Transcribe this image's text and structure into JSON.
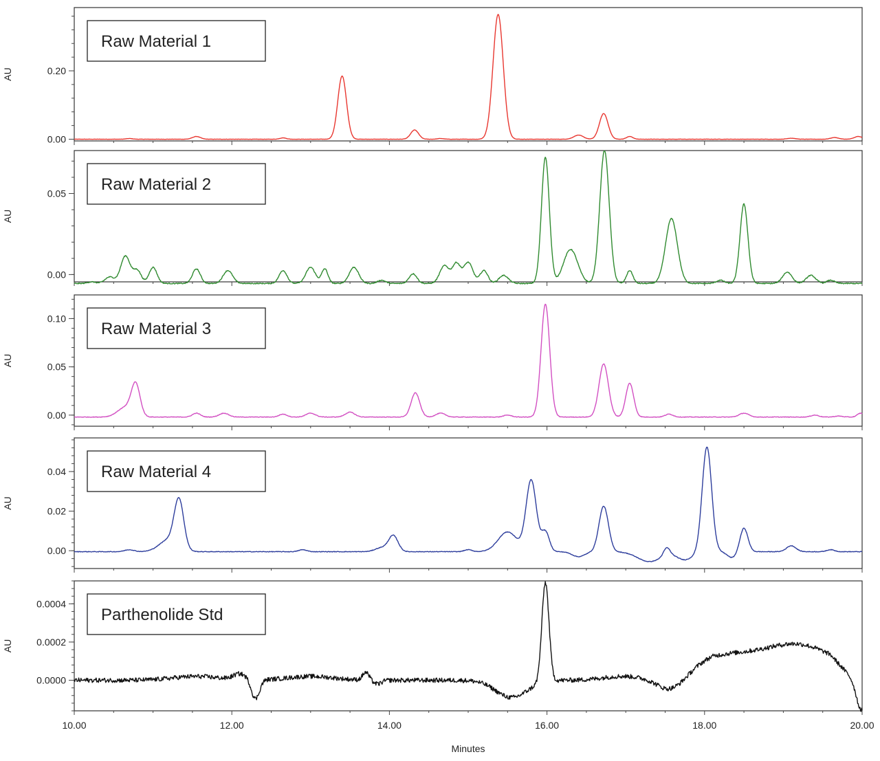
{
  "chart_data": [
    {
      "type": "line",
      "title": "Raw Material 1",
      "ylabel": "AU",
      "xlim": [
        10,
        20
      ],
      "ylim": [
        -0.005,
        0.385
      ],
      "yticks": [
        "0.20",
        "0.00"
      ],
      "ytick_values": [
        0.2,
        0.0
      ],
      "color": "#e8362f",
      "baseline": 0.0,
      "noise": 0.0004,
      "peaks": [
        {
          "x": 10.7,
          "h": 0.002,
          "w": 0.04
        },
        {
          "x": 11.55,
          "h": 0.008,
          "w": 0.05
        },
        {
          "x": 12.65,
          "h": 0.004,
          "w": 0.04
        },
        {
          "x": 13.4,
          "h": 0.185,
          "w": 0.055
        },
        {
          "x": 14.32,
          "h": 0.027,
          "w": 0.05
        },
        {
          "x": 14.65,
          "h": 0.002,
          "w": 0.04
        },
        {
          "x": 15.38,
          "h": 0.365,
          "w": 0.065
        },
        {
          "x": 16.4,
          "h": 0.012,
          "w": 0.06
        },
        {
          "x": 16.72,
          "h": 0.075,
          "w": 0.055
        },
        {
          "x": 17.05,
          "h": 0.008,
          "w": 0.04
        },
        {
          "x": 19.1,
          "h": 0.003,
          "w": 0.05
        },
        {
          "x": 19.65,
          "h": 0.005,
          "w": 0.05
        },
        {
          "x": 19.95,
          "h": 0.008,
          "w": 0.05
        }
      ]
    },
    {
      "type": "line",
      "title": "Raw Material 2",
      "ylabel": "AU",
      "xlim": [
        10,
        20
      ],
      "ylim": [
        -0.0045,
        0.0765
      ],
      "yticks": [
        "0.05",
        "0.00"
      ],
      "ytick_values": [
        0.05,
        0.0
      ],
      "color": "#2f8a2f",
      "baseline": -0.0055,
      "noise": 0.0003,
      "peaks": [
        {
          "x": 10.22,
          "h": 0.001,
          "w": 0.05
        },
        {
          "x": 10.45,
          "h": 0.004,
          "w": 0.06
        },
        {
          "x": 10.65,
          "h": 0.017,
          "w": 0.06
        },
        {
          "x": 10.8,
          "h": 0.008,
          "w": 0.05
        },
        {
          "x": 11.0,
          "h": 0.01,
          "w": 0.05
        },
        {
          "x": 11.55,
          "h": 0.009,
          "w": 0.05
        },
        {
          "x": 11.95,
          "h": 0.008,
          "w": 0.06
        },
        {
          "x": 12.65,
          "h": 0.008,
          "w": 0.05
        },
        {
          "x": 13.0,
          "h": 0.01,
          "w": 0.06
        },
        {
          "x": 13.18,
          "h": 0.009,
          "w": 0.04
        },
        {
          "x": 13.55,
          "h": 0.01,
          "w": 0.06
        },
        {
          "x": 13.9,
          "h": 0.002,
          "w": 0.05
        },
        {
          "x": 14.3,
          "h": 0.006,
          "w": 0.05
        },
        {
          "x": 14.7,
          "h": 0.011,
          "w": 0.06
        },
        {
          "x": 14.85,
          "h": 0.012,
          "w": 0.05
        },
        {
          "x": 15.0,
          "h": 0.013,
          "w": 0.06
        },
        {
          "x": 15.2,
          "h": 0.008,
          "w": 0.05
        },
        {
          "x": 15.45,
          "h": 0.005,
          "w": 0.06
        },
        {
          "x": 15.98,
          "h": 0.078,
          "w": 0.05
        },
        {
          "x": 16.3,
          "h": 0.021,
          "w": 0.09
        },
        {
          "x": 16.73,
          "h": 0.082,
          "w": 0.06
        },
        {
          "x": 17.05,
          "h": 0.008,
          "w": 0.04
        },
        {
          "x": 17.58,
          "h": 0.04,
          "w": 0.075
        },
        {
          "x": 18.2,
          "h": 0.002,
          "w": 0.05
        },
        {
          "x": 18.5,
          "h": 0.049,
          "w": 0.05
        },
        {
          "x": 19.05,
          "h": 0.007,
          "w": 0.06
        },
        {
          "x": 19.35,
          "h": 0.005,
          "w": 0.06
        },
        {
          "x": 19.6,
          "h": 0.002,
          "w": 0.05
        }
      ]
    },
    {
      "type": "line",
      "title": "Raw Material 3",
      "ylabel": "AU",
      "xlim": [
        10,
        20
      ],
      "ylim": [
        -0.0115,
        0.1245
      ],
      "yticks": [
        "0.10",
        "0.05",
        "0.00"
      ],
      "ytick_values": [
        0.1,
        0.05,
        0.0
      ],
      "color": "#d24fc2",
      "baseline": -0.002,
      "noise": 0.0003,
      "peaks": [
        {
          "x": 10.65,
          "h": 0.01,
          "w": 0.1
        },
        {
          "x": 10.78,
          "h": 0.032,
          "w": 0.055
        },
        {
          "x": 11.55,
          "h": 0.004,
          "w": 0.05
        },
        {
          "x": 11.9,
          "h": 0.004,
          "w": 0.06
        },
        {
          "x": 12.65,
          "h": 0.003,
          "w": 0.05
        },
        {
          "x": 13.0,
          "h": 0.004,
          "w": 0.06
        },
        {
          "x": 13.5,
          "h": 0.005,
          "w": 0.06
        },
        {
          "x": 14.33,
          "h": 0.025,
          "w": 0.055
        },
        {
          "x": 14.65,
          "h": 0.004,
          "w": 0.06
        },
        {
          "x": 15.5,
          "h": 0.002,
          "w": 0.05
        },
        {
          "x": 15.98,
          "h": 0.117,
          "w": 0.055
        },
        {
          "x": 16.72,
          "h": 0.055,
          "w": 0.06
        },
        {
          "x": 17.05,
          "h": 0.035,
          "w": 0.05
        },
        {
          "x": 17.55,
          "h": 0.003,
          "w": 0.05
        },
        {
          "x": 18.5,
          "h": 0.004,
          "w": 0.06
        },
        {
          "x": 19.4,
          "h": 0.002,
          "w": 0.05
        },
        {
          "x": 19.7,
          "h": 0.001,
          "w": 0.05
        },
        {
          "x": 19.98,
          "h": 0.004,
          "w": 0.04
        }
      ]
    },
    {
      "type": "line",
      "title": "Raw Material 4",
      "ylabel": "AU",
      "xlim": [
        10,
        20
      ],
      "ylim": [
        -0.009,
        0.057
      ],
      "yticks": [
        "0.04",
        "0.02",
        "0.00"
      ],
      "ytick_values": [
        0.04,
        0.02,
        0.0
      ],
      "color": "#2d3d9c",
      "baseline": -0.0005,
      "noise": 0.00015,
      "peaks": [
        {
          "x": 10.7,
          "h": 0.001,
          "w": 0.06
        },
        {
          "x": 11.2,
          "h": 0.006,
          "w": 0.12
        },
        {
          "x": 11.33,
          "h": 0.024,
          "w": 0.06
        },
        {
          "x": 12.9,
          "h": 0.001,
          "w": 0.05
        },
        {
          "x": 13.9,
          "h": 0.002,
          "w": 0.08
        },
        {
          "x": 14.05,
          "h": 0.008,
          "w": 0.06
        },
        {
          "x": 15.0,
          "h": 0.001,
          "w": 0.05
        },
        {
          "x": 15.5,
          "h": 0.01,
          "w": 0.12
        },
        {
          "x": 15.8,
          "h": 0.036,
          "w": 0.065
        },
        {
          "x": 15.98,
          "h": 0.01,
          "w": 0.05
        },
        {
          "x": 16.72,
          "h": 0.023,
          "w": 0.06
        },
        {
          "x": 17.52,
          "h": 0.004,
          "w": 0.04
        },
        {
          "x": 18.03,
          "h": 0.053,
          "w": 0.06
        },
        {
          "x": 18.5,
          "h": 0.012,
          "w": 0.05
        },
        {
          "x": 19.1,
          "h": 0.003,
          "w": 0.06
        },
        {
          "x": 19.6,
          "h": 0.001,
          "w": 0.05
        }
      ],
      "dips": [
        {
          "x": 16.4,
          "d": 0.0025,
          "w": 0.08
        },
        {
          "x": 17.3,
          "d": 0.005,
          "w": 0.15
        },
        {
          "x": 17.75,
          "d": 0.004,
          "w": 0.1
        },
        {
          "x": 18.35,
          "d": 0.003,
          "w": 0.06
        }
      ]
    },
    {
      "type": "line",
      "title": "Parthenolide Std",
      "ylabel": "AU",
      "xlabel": "Minutes",
      "xlim": [
        10,
        20
      ],
      "ylim": [
        -0.00016,
        0.00052
      ],
      "yticks": [
        "0.0004",
        "0.0002",
        "0.0000"
      ],
      "ytick_values": [
        0.0004,
        0.0002,
        0.0
      ],
      "xticks": [
        "10.00",
        "12.00",
        "14.00",
        "16.00",
        "18.00",
        "20.00"
      ],
      "xtick_values": [
        10,
        12,
        14,
        16,
        18,
        20
      ],
      "color": "#111111",
      "baseline": 0.0,
      "noise": 1.2e-05,
      "peaks": [
        {
          "x": 11.55,
          "h": 2e-05,
          "w": 0.3
        },
        {
          "x": 12.1,
          "h": 3e-05,
          "w": 0.08
        },
        {
          "x": 13.0,
          "h": 2e-05,
          "w": 0.3
        },
        {
          "x": 13.7,
          "h": 4e-05,
          "w": 0.04
        },
        {
          "x": 15.98,
          "h": 0.00052,
          "w": 0.045
        },
        {
          "x": 16.95,
          "h": 2e-05,
          "w": 0.25
        },
        {
          "x": 18.3,
          "h": 7e-05,
          "w": 0.45
        },
        {
          "x": 19.2,
          "h": 0.00012,
          "w": 0.4
        }
      ],
      "dips": [
        {
          "x": 12.3,
          "d": 0.0001,
          "w": 0.05
        },
        {
          "x": 13.85,
          "d": 2e-05,
          "w": 0.05
        },
        {
          "x": 15.55,
          "d": 9e-05,
          "w": 0.2
        },
        {
          "x": 17.6,
          "d": 7e-05,
          "w": 0.18
        },
        {
          "x": 19.99,
          "d": 0.00013,
          "w": 0.06
        }
      ],
      "ramps": [
        {
          "x0": 17.5,
          "x1": 18.1,
          "h": 6e-05
        },
        {
          "x0": 19.6,
          "x1": 19.95,
          "h": -0.0001
        }
      ]
    }
  ]
}
